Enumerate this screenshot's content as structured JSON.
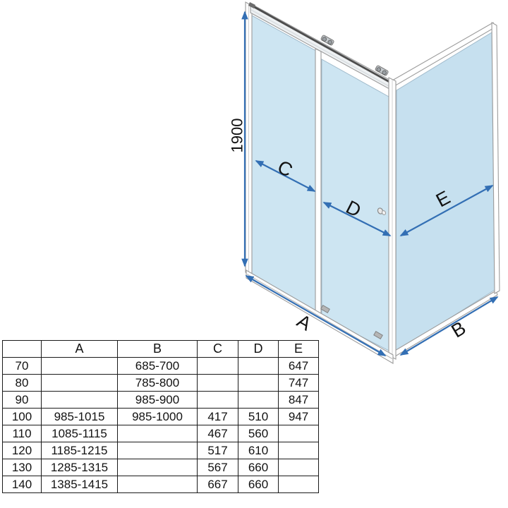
{
  "colors": {
    "arrow": "#336fb4",
    "glass": "#cde5f2",
    "glass_side": "#c6e0ef",
    "frame": "#9c9c9c",
    "rail_dark": "#4d4d4d",
    "label": "#121212",
    "table_border": "#1a1a1a",
    "table_text": "#121212"
  },
  "diagram": {
    "height_label": "1900",
    "labels": {
      "a": "A",
      "b": "B",
      "c": "C",
      "d": "D",
      "e": "E"
    }
  },
  "table": {
    "headers": [
      "",
      "A",
      "B",
      "C",
      "D",
      "E"
    ],
    "rows": [
      [
        "70",
        "",
        "685-700",
        "",
        "",
        "647"
      ],
      [
        "80",
        "",
        "785-800",
        "",
        "",
        "747"
      ],
      [
        "90",
        "",
        "985-900",
        "",
        "",
        "847"
      ],
      [
        "100",
        "985-1015",
        "985-1000",
        "417",
        "510",
        "947"
      ],
      [
        "110",
        "1085-1115",
        "",
        "467",
        "560",
        ""
      ],
      [
        "120",
        "1185-1215",
        "",
        "517",
        "610",
        ""
      ],
      [
        "130",
        "1285-1315",
        "",
        "567",
        "660",
        ""
      ],
      [
        "140",
        "1385-1415",
        "",
        "667",
        "660",
        ""
      ]
    ]
  }
}
